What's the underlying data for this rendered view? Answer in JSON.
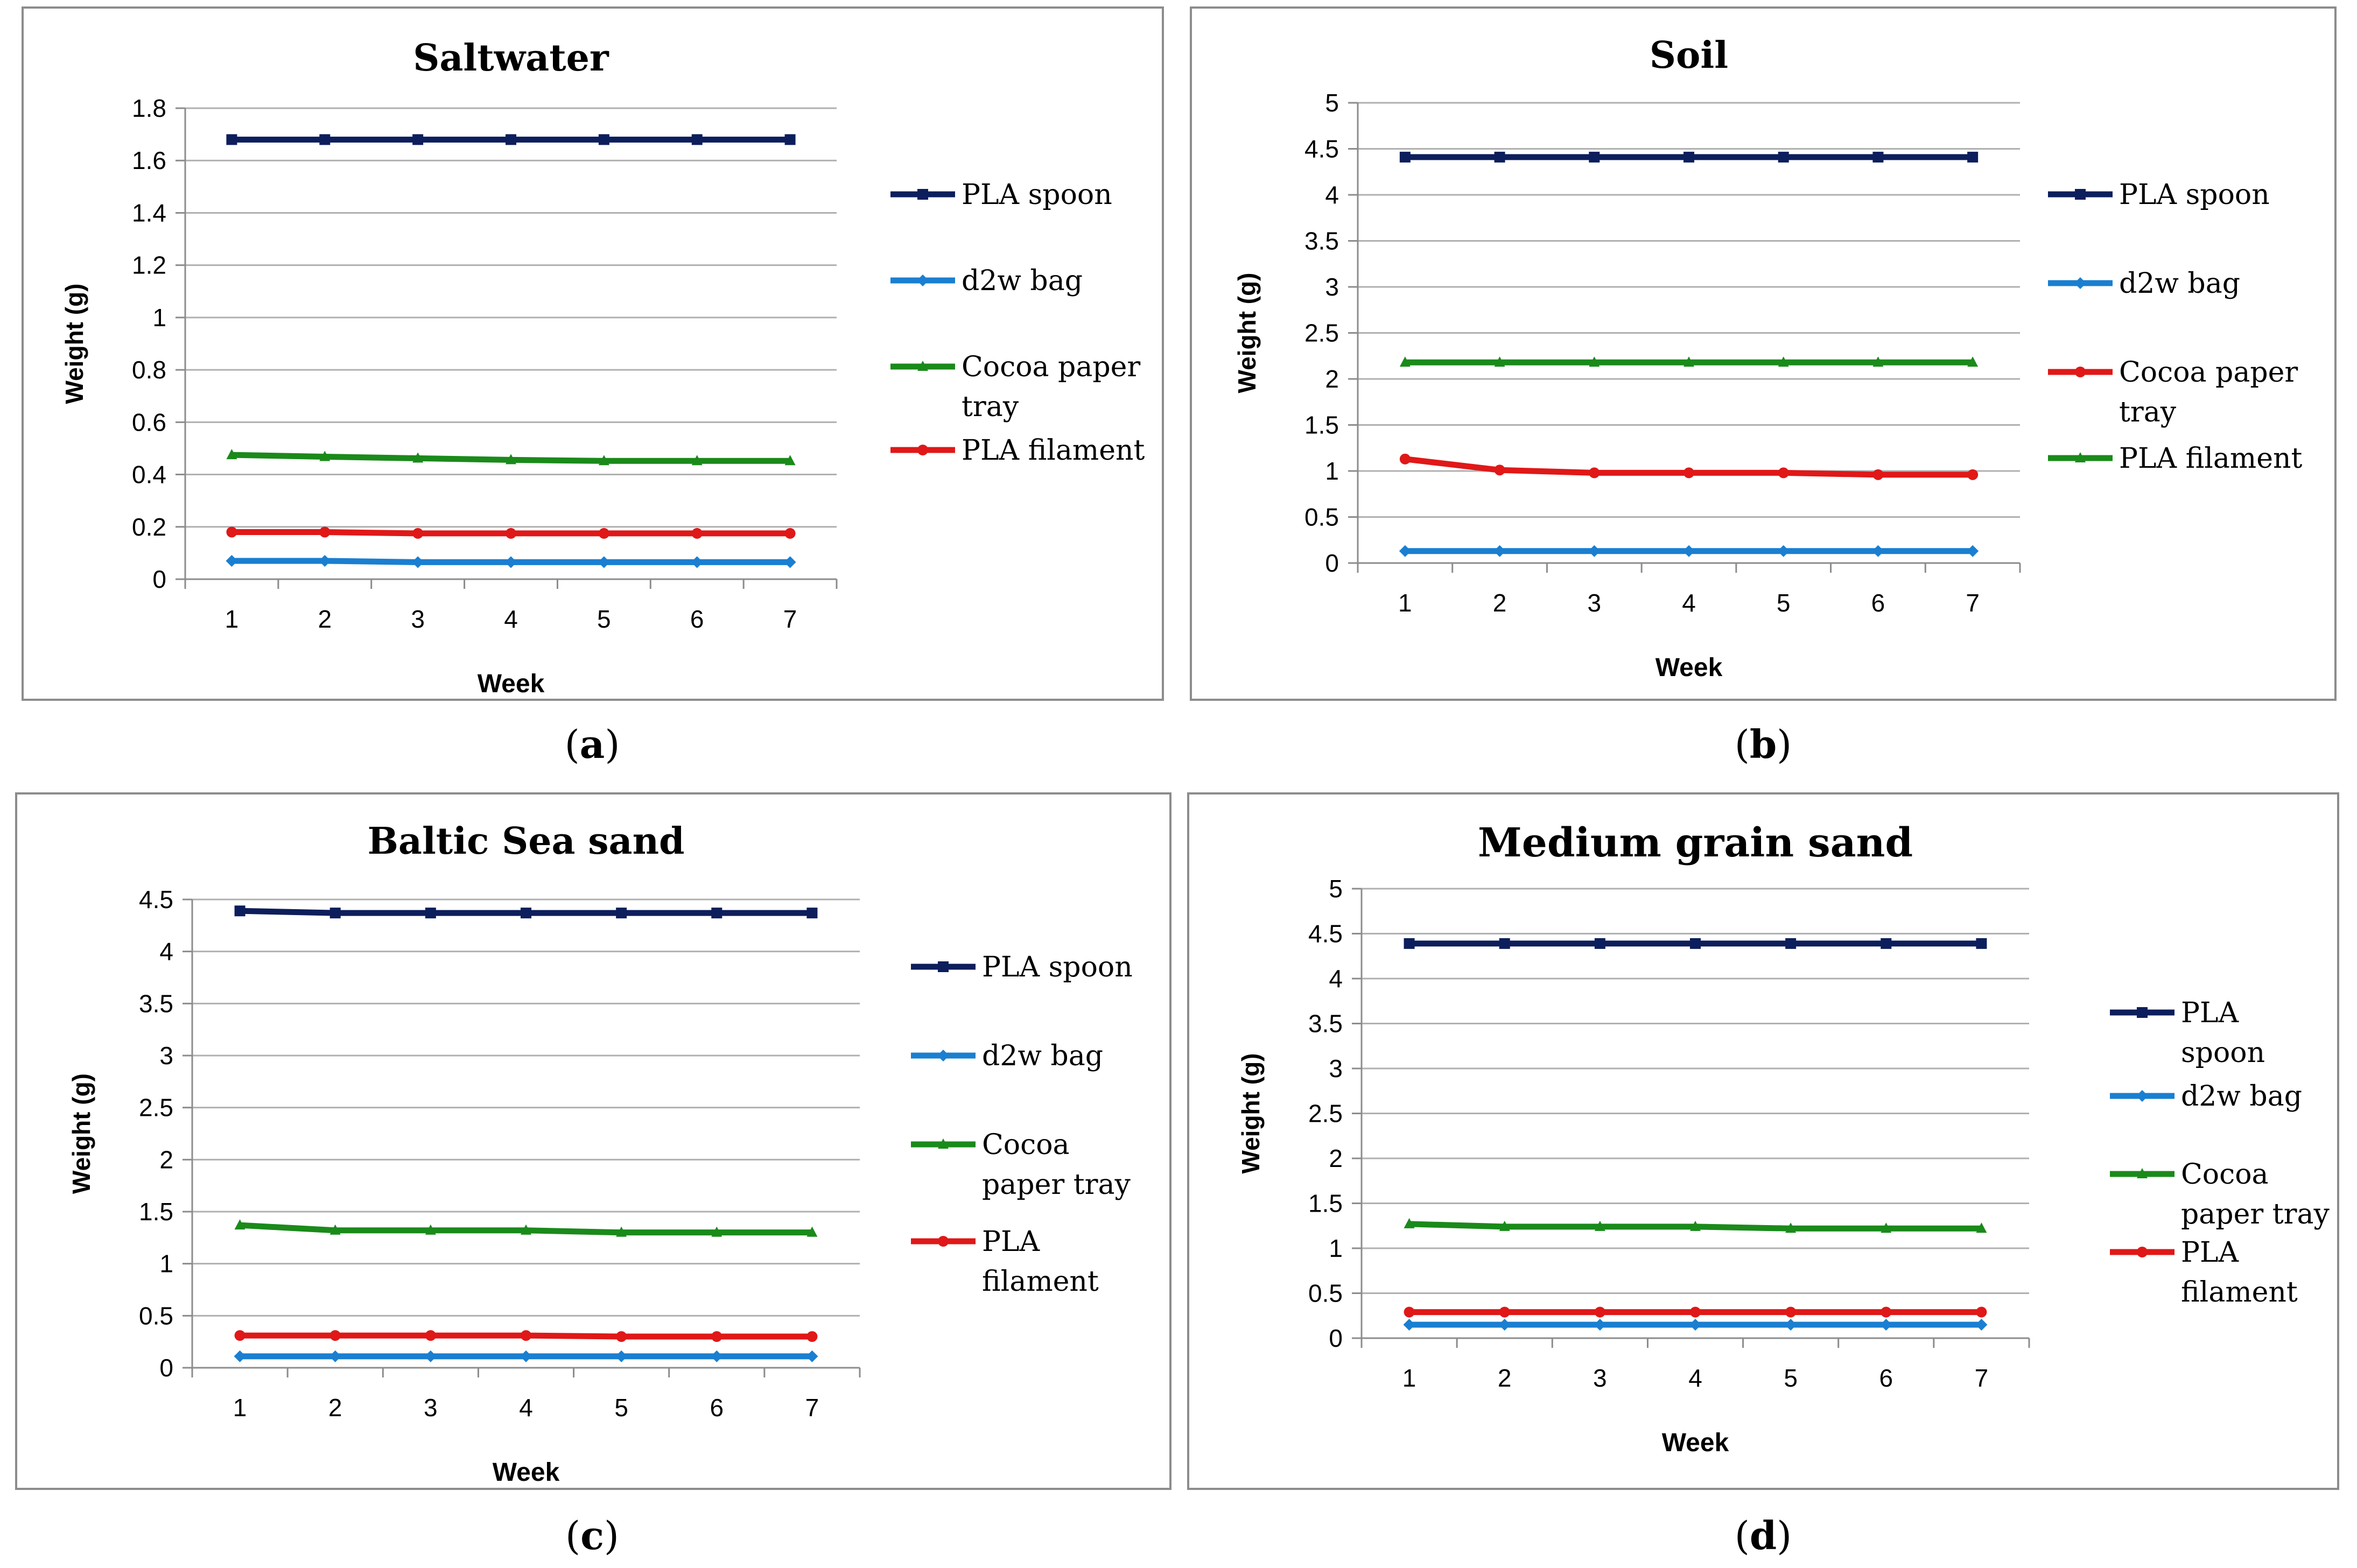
{
  "colors": {
    "navy": "#0d1e5c",
    "blue": "#1a7fd1",
    "green": "#1a8a1a",
    "red": "#e01818",
    "grid": "#b0b0b0",
    "axis": "#8c8c8c"
  },
  "captions": [
    "a",
    "b",
    "c",
    "d"
  ],
  "chart_data": [
    {
      "type": "line",
      "title": "Saltwater",
      "xlabel": "Week",
      "ylabel": "Weight (g)",
      "categories": [
        "1",
        "2",
        "3",
        "4",
        "5",
        "6",
        "7"
      ],
      "yticks": [
        "0",
        "0.2",
        "0.4",
        "0.6",
        "0.8",
        "1",
        "1.2",
        "1.4",
        "1.6",
        "1.8"
      ],
      "ylim": [
        0,
        1.8
      ],
      "series": [
        {
          "name": "PLA spoon",
          "color": "#0d1e5c",
          "marker": "square",
          "values": [
            1.68,
            1.68,
            1.68,
            1.68,
            1.68,
            1.68,
            1.68
          ]
        },
        {
          "name": "d2w bag",
          "color": "#1a7fd1",
          "marker": "diamond",
          "values": [
            0.07,
            0.07,
            0.065,
            0.065,
            0.065,
            0.065,
            0.065
          ]
        },
        {
          "name": "Cocoa paper tray",
          "color": "#1a8a1a",
          "marker": "triangle",
          "values": [
            0.475,
            0.468,
            0.462,
            0.456,
            0.452,
            0.452,
            0.452
          ]
        },
        {
          "name": "PLA filament",
          "color": "#e01818",
          "marker": "circle",
          "values": [
            0.18,
            0.18,
            0.175,
            0.175,
            0.175,
            0.175,
            0.175
          ]
        }
      ]
    },
    {
      "type": "line",
      "title": "Soil",
      "xlabel": "Week",
      "ylabel": "Weight (g)",
      "categories": [
        "1",
        "2",
        "3",
        "4",
        "5",
        "6",
        "7"
      ],
      "yticks": [
        "0",
        "0.5",
        "1",
        "1.5",
        "2",
        "2.5",
        "3",
        "3.5",
        "4",
        "4.5",
        "5"
      ],
      "ylim": [
        0,
        5
      ],
      "series": [
        {
          "name": "PLA spoon",
          "color": "#0d1e5c",
          "marker": "square",
          "values": [
            4.41,
            4.41,
            4.41,
            4.41,
            4.41,
            4.41,
            4.41
          ]
        },
        {
          "name": "d2w bag",
          "color": "#1a7fd1",
          "marker": "diamond",
          "values": [
            0.13,
            0.13,
            0.13,
            0.13,
            0.13,
            0.13,
            0.13
          ]
        },
        {
          "name": "Cocoa paper tray",
          "color": "#e01818",
          "marker": "circle",
          "values": [
            1.13,
            1.01,
            0.98,
            0.98,
            0.98,
            0.96,
            0.96
          ]
        },
        {
          "name": "PLA filament",
          "color": "#1a8a1a",
          "marker": "triangle",
          "values": [
            2.18,
            2.18,
            2.18,
            2.18,
            2.18,
            2.18,
            2.18
          ]
        }
      ]
    },
    {
      "type": "line",
      "title": "Baltic Sea sand",
      "xlabel": "Week",
      "ylabel": "Weight (g)",
      "categories": [
        "1",
        "2",
        "3",
        "4",
        "5",
        "6",
        "7"
      ],
      "yticks": [
        "0",
        "0.5",
        "1",
        "1.5",
        "2",
        "2.5",
        "3",
        "3.5",
        "4",
        "4.5"
      ],
      "ylim": [
        0,
        4.5
      ],
      "series": [
        {
          "name": "PLA spoon",
          "color": "#0d1e5c",
          "marker": "square",
          "values": [
            4.39,
            4.37,
            4.37,
            4.37,
            4.37,
            4.37,
            4.37
          ]
        },
        {
          "name": "d2w bag",
          "color": "#1a7fd1",
          "marker": "diamond",
          "values": [
            0.11,
            0.11,
            0.11,
            0.11,
            0.11,
            0.11,
            0.11
          ]
        },
        {
          "name": "Cocoa paper tray",
          "color": "#1a8a1a",
          "marker": "triangle",
          "values": [
            1.37,
            1.32,
            1.32,
            1.32,
            1.3,
            1.3,
            1.3
          ]
        },
        {
          "name": "PLA filament",
          "color": "#e01818",
          "marker": "circle",
          "values": [
            0.31,
            0.31,
            0.31,
            0.31,
            0.3,
            0.3,
            0.3
          ]
        }
      ]
    },
    {
      "type": "line",
      "title": "Medium grain sand",
      "xlabel": "Week",
      "ylabel": "Weight (g)",
      "categories": [
        "1",
        "2",
        "3",
        "4",
        "5",
        "6",
        "7"
      ],
      "yticks": [
        "0",
        "0.5",
        "1",
        "1.5",
        "2",
        "2.5",
        "3",
        "3.5",
        "4",
        "4.5",
        "5"
      ],
      "ylim": [
        0,
        5
      ],
      "series": [
        {
          "name": "PLA spoon",
          "color": "#0d1e5c",
          "marker": "square",
          "values": [
            4.39,
            4.39,
            4.39,
            4.39,
            4.39,
            4.39,
            4.39
          ]
        },
        {
          "name": "d2w bag",
          "color": "#1a7fd1",
          "marker": "diamond",
          "values": [
            0.15,
            0.15,
            0.15,
            0.15,
            0.15,
            0.15,
            0.15
          ]
        },
        {
          "name": "Cocoa paper tray",
          "color": "#1a8a1a",
          "marker": "triangle",
          "values": [
            1.27,
            1.24,
            1.24,
            1.24,
            1.22,
            1.22,
            1.22
          ]
        },
        {
          "name": "PLA filament",
          "color": "#e01818",
          "marker": "circle",
          "values": [
            0.29,
            0.29,
            0.29,
            0.29,
            0.29,
            0.29,
            0.29
          ]
        }
      ]
    }
  ]
}
